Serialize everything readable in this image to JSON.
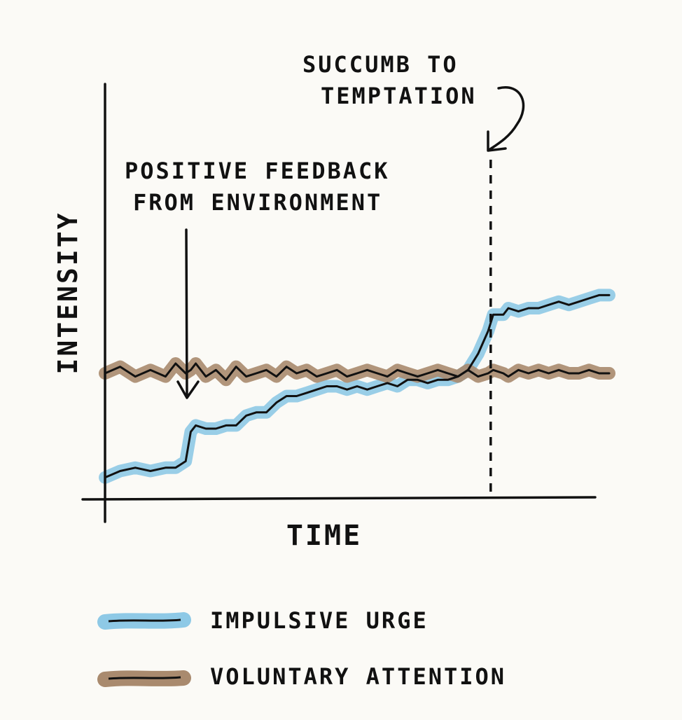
{
  "colors": {
    "ink": "#111111",
    "impulsive_urge": "#8ec9e6",
    "voluntary_attention": "#a98a6e",
    "background": "#fbfaf6"
  },
  "chart_data": {
    "type": "line",
    "title": "",
    "xlabel": "TIME",
    "ylabel": "INTENSITY",
    "xlim": [
      0,
      100
    ],
    "ylim": [
      0,
      100
    ],
    "grid": false,
    "legend_placement": "bottom-left",
    "axes_tick_labels": false,
    "series": [
      {
        "name": "IMPULSIVE URGE",
        "color": "#8ec9e6",
        "x": [
          0,
          3,
          6,
          9,
          12,
          14,
          16,
          17,
          18,
          20,
          22,
          24,
          26,
          28,
          30,
          32,
          34,
          36,
          38,
          40,
          42,
          44,
          46,
          48,
          50,
          52,
          54,
          56,
          58,
          60,
          62,
          64,
          66,
          68,
          70,
          72,
          74,
          76,
          77,
          79,
          80,
          82,
          84,
          86,
          88,
          90,
          92,
          94,
          96,
          98,
          100
        ],
        "values": [
          5,
          7,
          8,
          7,
          8,
          8,
          10,
          19,
          21,
          20,
          20,
          21,
          21,
          24,
          25,
          25,
          28,
          30,
          30,
          31,
          32,
          33,
          33,
          32,
          33,
          32,
          33,
          34,
          33,
          35,
          35,
          34,
          35,
          35,
          36,
          38,
          43,
          50,
          55,
          55,
          57,
          56,
          57,
          57,
          58,
          59,
          58,
          59,
          60,
          61,
          61
        ]
      },
      {
        "name": "VOLUNTARY ATTENTION",
        "color": "#a98a6e",
        "x": [
          0,
          3,
          6,
          9,
          12,
          14,
          16,
          17,
          18,
          20,
          22,
          24,
          26,
          28,
          30,
          32,
          34,
          36,
          38,
          40,
          42,
          44,
          46,
          48,
          50,
          52,
          54,
          56,
          58,
          60,
          62,
          64,
          66,
          68,
          70,
          72,
          74,
          76,
          77,
          79,
          80,
          82,
          84,
          86,
          88,
          90,
          92,
          94,
          96,
          98,
          100
        ],
        "values": [
          37,
          39,
          36,
          38,
          36,
          40,
          37,
          38,
          40,
          36,
          38,
          35,
          39,
          36,
          37,
          38,
          36,
          39,
          37,
          38,
          36,
          37,
          38,
          36,
          37,
          38,
          37,
          36,
          38,
          37,
          36,
          37,
          38,
          37,
          36,
          38,
          36,
          37,
          38,
          37,
          36,
          38,
          37,
          38,
          37,
          38,
          37,
          37,
          38,
          37,
          37
        ]
      }
    ],
    "annotations": [
      {
        "id": "positive-feedback",
        "lines": [
          "POSITIVE FEEDBACK",
          "FROM ENVIRONMENT"
        ],
        "x": 16.5,
        "arrow": "down"
      },
      {
        "id": "succumb",
        "lines": [
          "SUCCUMB TO",
          "TEMPTATION"
        ],
        "x": 76.5,
        "dashed_marker": true,
        "arrow": "curved-down-left"
      }
    ]
  }
}
